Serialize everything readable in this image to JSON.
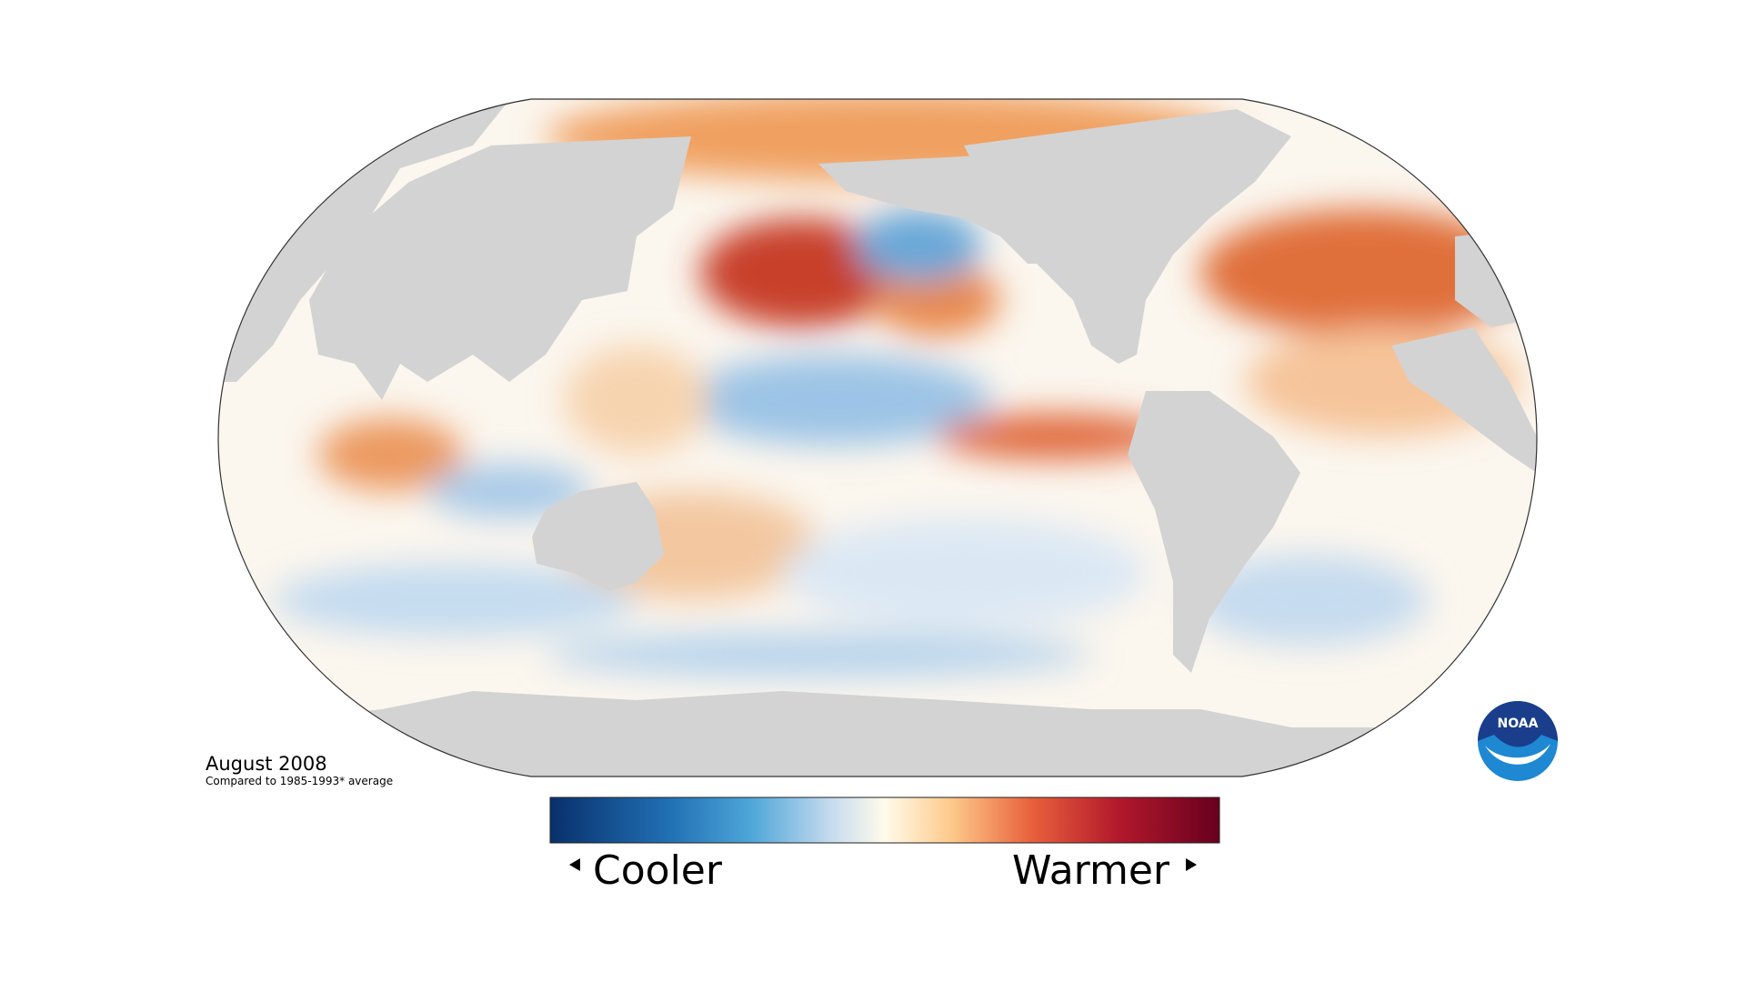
{
  "map": {
    "date": "August 2008",
    "baseline": "Compared to 1985-1993* average"
  },
  "legend": {
    "low": "Cooler",
    "high": "Warmer"
  },
  "logo": {
    "text": "NOAA"
  }
}
